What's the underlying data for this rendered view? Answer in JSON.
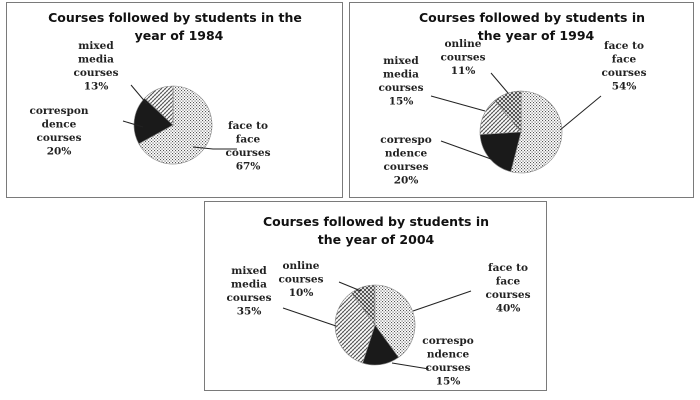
{
  "chart_data": [
    {
      "type": "pie",
      "title_lines": [
        "Courses followed by students in the",
        "year of 1984"
      ],
      "slices": [
        {
          "label_lines": [
            "face to",
            "face",
            "courses"
          ],
          "pct_label": "67%",
          "value": 67,
          "pattern": "dots"
        },
        {
          "label_lines": [
            "correspon",
            "dence",
            "courses"
          ],
          "pct_label": "20%",
          "value": 20,
          "pattern": "solid"
        },
        {
          "label_lines": [
            "mixed",
            "media",
            "courses"
          ],
          "pct_label": "13%",
          "value": 13,
          "pattern": "diag"
        }
      ]
    },
    {
      "type": "pie",
      "title_lines": [
        "Courses followed by students in",
        "the year of 1994"
      ],
      "slices": [
        {
          "label_lines": [
            "face to",
            "face",
            "courses"
          ],
          "pct_label": "54%",
          "value": 54,
          "pattern": "dots"
        },
        {
          "label_lines": [
            "correspo",
            "ndence",
            "courses"
          ],
          "pct_label": "20%",
          "value": 20,
          "pattern": "solid"
        },
        {
          "label_lines": [
            "mixed",
            "media",
            "courses"
          ],
          "pct_label": "15%",
          "value": 15,
          "pattern": "diag"
        },
        {
          "label_lines": [
            "online",
            "courses"
          ],
          "pct_label": "11%",
          "value": 11,
          "pattern": "cross"
        }
      ]
    },
    {
      "type": "pie",
      "title_lines": [
        "Courses followed by students in",
        "the year of 2004"
      ],
      "slices": [
        {
          "label_lines": [
            "face to",
            "face",
            "courses"
          ],
          "pct_label": "40%",
          "value": 40,
          "pattern": "dots"
        },
        {
          "label_lines": [
            "correspo",
            "ndence",
            "courses"
          ],
          "pct_label": "15%",
          "value": 15,
          "pattern": "solid"
        },
        {
          "label_lines": [
            "mixed",
            "media",
            "courses"
          ],
          "pct_label": "35%",
          "value": 35,
          "pattern": "diag"
        },
        {
          "label_lines": [
            "online",
            "courses"
          ],
          "pct_label": "10%",
          "value": 10,
          "pattern": "cross"
        }
      ]
    }
  ],
  "colors": {
    "ink": "#111111",
    "solid_fill": "#1a1a1a",
    "border": "#7a7a7a"
  }
}
